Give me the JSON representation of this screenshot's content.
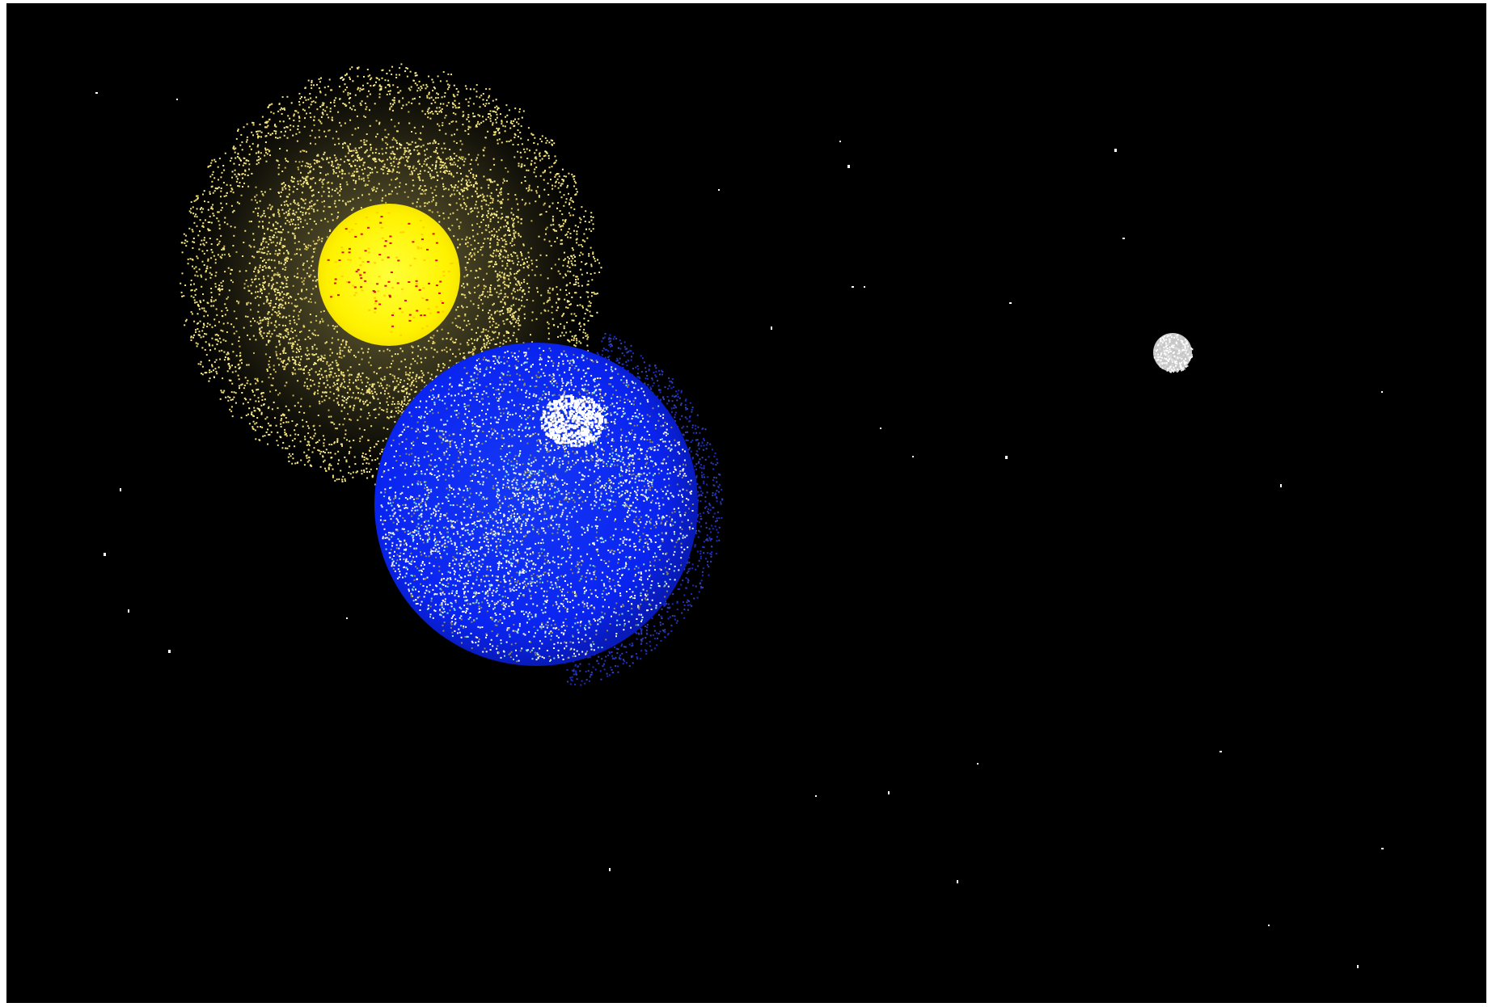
{
  "scene": {
    "background": "#000000",
    "frame_color": "#ffffff",
    "bodies": [
      {
        "name": "sun",
        "core_color": "#fff200",
        "corona_color": "#f3e37a",
        "accent_color": "#d9101a"
      },
      {
        "name": "earth",
        "ocean_color": "#0a24f0",
        "cloud_color": "#ffffff",
        "land_color": "#8c8a5a",
        "haze_color": "#7fe6e6"
      },
      {
        "name": "moon",
        "color": "#dcdcdc"
      }
    ],
    "star_color": "#ffffff"
  }
}
